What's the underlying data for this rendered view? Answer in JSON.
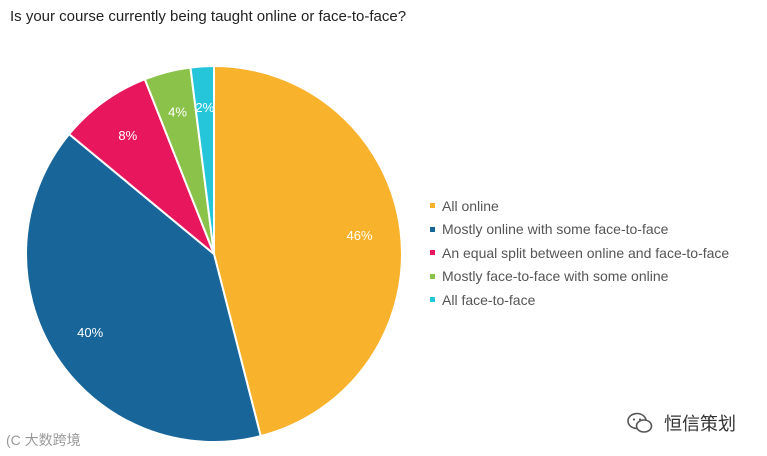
{
  "title": "Is your course currently being taught online or face-to-face?",
  "chart_data": {
    "type": "pie",
    "title": "Is your course currently being taught online or face-to-face?",
    "start_angle_deg": 0,
    "direction": "clockwise",
    "legend_position": "right",
    "slices": [
      {
        "label": "All online",
        "value": 46,
        "display": "46%",
        "color": "#F9B22B"
      },
      {
        "label": "Mostly online with some face-to-face",
        "value": 40,
        "display": "40%",
        "color": "#186699"
      },
      {
        "label": "An equal split between online and face-to-face",
        "value": 8,
        "display": "8%",
        "color": "#E8175D"
      },
      {
        "label": "Mostly face-to-face with some online",
        "value": 4,
        "display": "4%",
        "color": "#8BC34A"
      },
      {
        "label": "All face-to-face",
        "value": 2,
        "display": "2%",
        "color": "#26C6DA"
      }
    ]
  },
  "watermark": {
    "left_text": "(C 大数跨境",
    "right_text": "恒信策划",
    "right_icon": "wechat-icon"
  }
}
